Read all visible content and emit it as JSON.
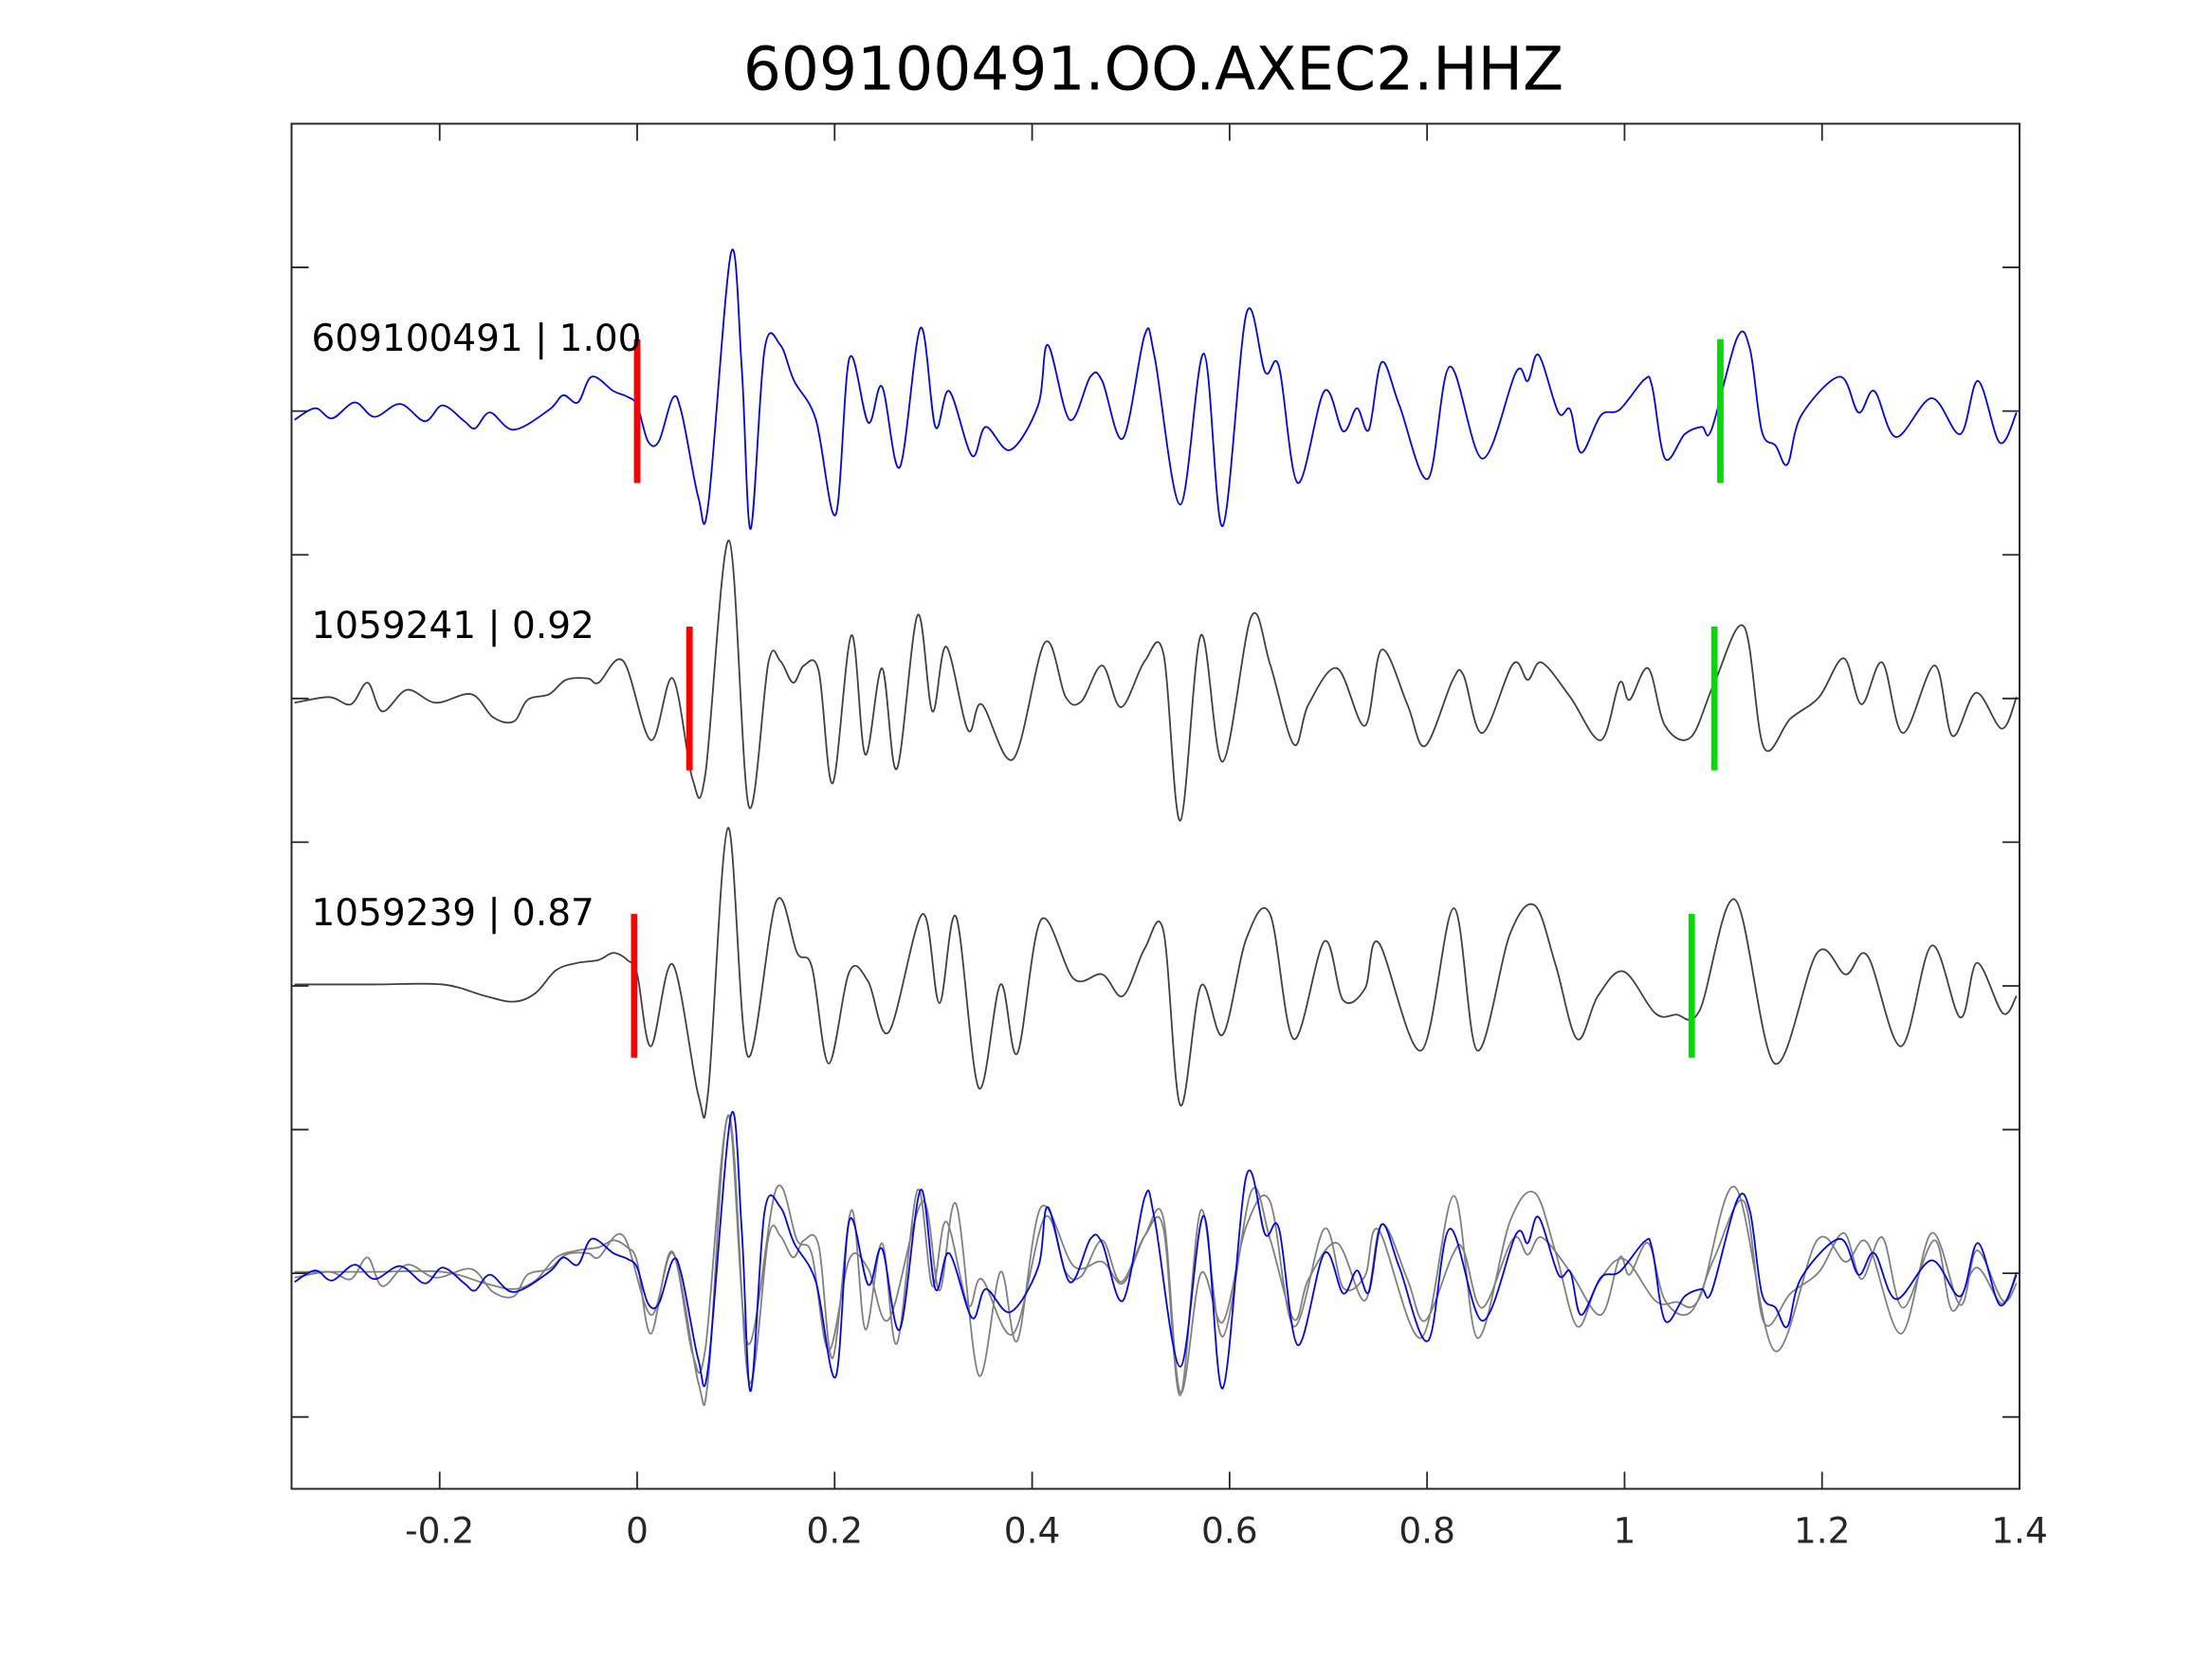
{
  "chart_data": {
    "type": "line",
    "title": "609100491.OO.AXEC2.HHZ",
    "xlabel": "",
    "ylabel": "",
    "xlim": [
      -0.35,
      1.4
    ],
    "ylim": [
      -0.5,
      9
    ],
    "xticks": [
      -0.2,
      0,
      0.2,
      0.4,
      0.6,
      0.8,
      1,
      1.2,
      1.4
    ],
    "xtick_labels": [
      "-0.2",
      "0",
      "0.2",
      "0.4",
      "0.6",
      "0.8",
      "1",
      "1.2",
      "1.4"
    ],
    "yticks": [
      0,
      1,
      2,
      3,
      4,
      5,
      6,
      7,
      8
    ],
    "grid": false,
    "colors": {
      "template": "#0000ff",
      "neighbor": "#404040",
      "overlay_neighbor": "#808080",
      "p_pick": "#ff0000",
      "s_pick": "#00dd00",
      "axis": "#262626"
    },
    "series": [
      {
        "name": "609100491",
        "cc": "1.00",
        "label": "609100491 | 1.00",
        "offset": 7,
        "color": "#0000ff",
        "p_pick": 0.0,
        "s_pick": 1.097,
        "points": [
          [
            -0.347,
            -0.06
          ],
          [
            -0.326,
            0.02
          ],
          [
            -0.309,
            -0.05
          ],
          [
            -0.286,
            0.06
          ],
          [
            -0.266,
            -0.04
          ],
          [
            -0.24,
            0.05
          ],
          [
            -0.215,
            -0.07
          ],
          [
            -0.197,
            0.04
          ],
          [
            -0.175,
            -0.07
          ],
          [
            -0.164,
            -0.12
          ],
          [
            -0.149,
            -0.01
          ],
          [
            -0.125,
            -0.13
          ],
          [
            -0.089,
            0.01
          ],
          [
            -0.075,
            0.11
          ],
          [
            -0.06,
            0.06
          ],
          [
            -0.046,
            0.24
          ],
          [
            -0.024,
            0.14
          ],
          [
            -0.01,
            0.1
          ],
          [
            0,
            0.04
          ],
          [
            0.011,
            -0.21
          ],
          [
            0.022,
            -0.21
          ],
          [
            0.036,
            0.09
          ],
          [
            0.045,
            -0.01
          ],
          [
            0.062,
            -0.6
          ],
          [
            0.072,
            -0.65
          ],
          [
            0.095,
            1.1
          ],
          [
            0.106,
            0.29
          ],
          [
            0.115,
            -0.82
          ],
          [
            0.129,
            0.43
          ],
          [
            0.145,
            0.46
          ],
          [
            0.159,
            0.21
          ],
          [
            0.181,
            -0.06
          ],
          [
            0.201,
            -0.72
          ],
          [
            0.215,
            0.37
          ],
          [
            0.234,
            -0.08
          ],
          [
            0.248,
            0.17
          ],
          [
            0.266,
            -0.39
          ],
          [
            0.287,
            0.58
          ],
          [
            0.302,
            -0.11
          ],
          [
            0.316,
            0.14
          ],
          [
            0.339,
            -0.31
          ],
          [
            0.353,
            -0.11
          ],
          [
            0.378,
            -0.27
          ],
          [
            0.406,
            0.04
          ],
          [
            0.416,
            0.46
          ],
          [
            0.438,
            -0.06
          ],
          [
            0.459,
            0.24
          ],
          [
            0.471,
            0.21
          ],
          [
            0.492,
            -0.19
          ],
          [
            0.514,
            0.53
          ],
          [
            0.524,
            0.38
          ],
          [
            0.55,
            -0.65
          ],
          [
            0.574,
            0.4
          ],
          [
            0.593,
            -0.8
          ],
          [
            0.617,
            0.68
          ],
          [
            0.636,
            0.27
          ],
          [
            0.65,
            0.31
          ],
          [
            0.669,
            -0.5
          ],
          [
            0.696,
            0.14
          ],
          [
            0.715,
            -0.14
          ],
          [
            0.729,
            0.02
          ],
          [
            0.741,
            -0.13
          ],
          [
            0.754,
            0.34
          ],
          [
            0.772,
            0.04
          ],
          [
            0.801,
            -0.47
          ],
          [
            0.823,
            0.31
          ],
          [
            0.856,
            -0.33
          ],
          [
            0.89,
            0.27
          ],
          [
            0.902,
            0.21
          ],
          [
            0.913,
            0.39
          ],
          [
            0.933,
            -0.01
          ],
          [
            0.945,
            0.01
          ],
          [
            0.956,
            -0.29
          ],
          [
            0.976,
            -0.03
          ],
          [
            0.995,
            0.01
          ],
          [
            1.02,
            0.22
          ],
          [
            1.028,
            0.17
          ],
          [
            1.041,
            -0.33
          ],
          [
            1.061,
            -0.16
          ],
          [
            1.078,
            -0.11
          ],
          [
            1.088,
            -0.13
          ],
          [
            1.114,
            0.51
          ],
          [
            1.127,
            0.43
          ],
          [
            1.139,
            -0.14
          ],
          [
            1.153,
            -0.24
          ],
          [
            1.165,
            -0.37
          ],
          [
            1.179,
            -0.03
          ],
          [
            1.218,
            0.24
          ],
          [
            1.237,
            -0.01
          ],
          [
            1.253,
            0.14
          ],
          [
            1.275,
            -0.18
          ],
          [
            1.311,
            0.09
          ],
          [
            1.34,
            -0.16
          ],
          [
            1.358,
            0.21
          ],
          [
            1.38,
            -0.22
          ],
          [
            1.397,
            -0.01
          ]
        ]
      },
      {
        "name": "1059241",
        "cc": "0.92",
        "label": "1059241 | 0.92",
        "offset": 5,
        "color": "#404040",
        "p_pick": 0.053,
        "s_pick": 1.091,
        "points": [
          [
            -0.347,
            -0.03
          ],
          [
            -0.312,
            0.01
          ],
          [
            -0.29,
            -0.04
          ],
          [
            -0.273,
            0.11
          ],
          [
            -0.258,
            -0.09
          ],
          [
            -0.233,
            0.06
          ],
          [
            -0.204,
            -0.03
          ],
          [
            -0.168,
            0.03
          ],
          [
            -0.146,
            -0.13
          ],
          [
            -0.125,
            -0.16
          ],
          [
            -0.111,
            -0.01
          ],
          [
            -0.089,
            0.03
          ],
          [
            -0.072,
            0.13
          ],
          [
            -0.05,
            0.14
          ],
          [
            -0.039,
            0.11
          ],
          [
            -0.014,
            0.26
          ],
          [
            0.014,
            -0.29
          ],
          [
            0.036,
            0.14
          ],
          [
            0.056,
            -0.56
          ],
          [
            0.069,
            -0.53
          ],
          [
            0.093,
            1.1
          ],
          [
            0.113,
            -0.75
          ],
          [
            0.133,
            0.25
          ],
          [
            0.145,
            0.26
          ],
          [
            0.158,
            0.11
          ],
          [
            0.169,
            0.23
          ],
          [
            0.184,
            0.19
          ],
          [
            0.198,
            -0.59
          ],
          [
            0.217,
            0.44
          ],
          [
            0.231,
            -0.39
          ],
          [
            0.248,
            0.21
          ],
          [
            0.263,
            -0.49
          ],
          [
            0.284,
            0.58
          ],
          [
            0.299,
            -0.09
          ],
          [
            0.313,
            0.36
          ],
          [
            0.335,
            -0.22
          ],
          [
            0.349,
            -0.04
          ],
          [
            0.381,
            -0.42
          ],
          [
            0.413,
            0.39
          ],
          [
            0.434,
            0.01
          ],
          [
            0.45,
            -0.02
          ],
          [
            0.471,
            0.23
          ],
          [
            0.49,
            -0.06
          ],
          [
            0.514,
            0.26
          ],
          [
            0.533,
            0.31
          ],
          [
            0.55,
            -0.85
          ],
          [
            0.571,
            0.44
          ],
          [
            0.593,
            -0.44
          ],
          [
            0.622,
            0.57
          ],
          [
            0.641,
            0.24
          ],
          [
            0.665,
            -0.32
          ],
          [
            0.68,
            -0.04
          ],
          [
            0.709,
            0.21
          ],
          [
            0.737,
            -0.19
          ],
          [
            0.754,
            0.34
          ],
          [
            0.78,
            -0.04
          ],
          [
            0.798,
            -0.33
          ],
          [
            0.826,
            0.13
          ],
          [
            0.837,
            0.16
          ],
          [
            0.856,
            -0.24
          ],
          [
            0.887,
            0.24
          ],
          [
            0.902,
            0.13
          ],
          [
            0.916,
            0.25
          ],
          [
            0.945,
            0.01
          ],
          [
            0.976,
            -0.29
          ],
          [
            0.995,
            0.11
          ],
          [
            1.005,
            -0.01
          ],
          [
            1.024,
            0.21
          ],
          [
            1.041,
            -0.19
          ],
          [
            1.067,
            -0.27
          ],
          [
            1.091,
            0.11
          ],
          [
            1.121,
            0.5
          ],
          [
            1.141,
            -0.34
          ],
          [
            1.168,
            -0.14
          ],
          [
            1.197,
            0.01
          ],
          [
            1.222,
            0.28
          ],
          [
            1.24,
            -0.04
          ],
          [
            1.261,
            0.25
          ],
          [
            1.282,
            -0.24
          ],
          [
            1.314,
            0.23
          ],
          [
            1.332,
            -0.26
          ],
          [
            1.356,
            0.04
          ],
          [
            1.382,
            -0.21
          ],
          [
            1.397,
            0.01
          ]
        ]
      },
      {
        "name": "1059239",
        "cc": "0.87",
        "label": "1059239 | 0.87",
        "offset": 3,
        "color": "#404040",
        "p_pick": -0.003,
        "s_pick": 1.068,
        "points": [
          [
            -0.347,
            0.01
          ],
          [
            -0.268,
            0.01
          ],
          [
            -0.197,
            0.01
          ],
          [
            -0.154,
            -0.07
          ],
          [
            -0.125,
            -0.11
          ],
          [
            -0.103,
            -0.05
          ],
          [
            -0.082,
            0.11
          ],
          [
            -0.06,
            0.16
          ],
          [
            -0.039,
            0.18
          ],
          [
            -0.024,
            0.23
          ],
          [
            -0.01,
            0.18
          ],
          [
            0,
            0.08
          ],
          [
            0.014,
            -0.42
          ],
          [
            0.036,
            0.15
          ],
          [
            0.062,
            -0.76
          ],
          [
            0.072,
            -0.73
          ],
          [
            0.092,
            1.1
          ],
          [
            0.112,
            -0.49
          ],
          [
            0.141,
            0.59
          ],
          [
            0.162,
            0.23
          ],
          [
            0.177,
            0.13
          ],
          [
            0.194,
            -0.54
          ],
          [
            0.215,
            0.1
          ],
          [
            0.234,
            0.03
          ],
          [
            0.255,
            -0.32
          ],
          [
            0.289,
            0.5
          ],
          [
            0.306,
            -0.12
          ],
          [
            0.323,
            0.48
          ],
          [
            0.346,
            -0.71
          ],
          [
            0.368,
            0.01
          ],
          [
            0.385,
            -0.47
          ],
          [
            0.409,
            0.46
          ],
          [
            0.442,
            0.05
          ],
          [
            0.471,
            0.08
          ],
          [
            0.492,
            -0.07
          ],
          [
            0.514,
            0.26
          ],
          [
            0.533,
            0.38
          ],
          [
            0.55,
            -0.83
          ],
          [
            0.571,
            0.0
          ],
          [
            0.593,
            -0.34
          ],
          [
            0.617,
            0.33
          ],
          [
            0.641,
            0.5
          ],
          [
            0.665,
            -0.37
          ],
          [
            0.696,
            0.31
          ],
          [
            0.715,
            -0.1
          ],
          [
            0.737,
            -0.02
          ],
          [
            0.751,
            0.3
          ],
          [
            0.794,
            -0.45
          ],
          [
            0.827,
            0.54
          ],
          [
            0.851,
            -0.45
          ],
          [
            0.884,
            0.36
          ],
          [
            0.909,
            0.56
          ],
          [
            0.93,
            0.15
          ],
          [
            0.952,
            -0.37
          ],
          [
            0.973,
            -0.07
          ],
          [
            0.999,
            0.1
          ],
          [
            1.031,
            -0.19
          ],
          [
            1.052,
            -0.2
          ],
          [
            1.076,
            -0.17
          ],
          [
            1.112,
            0.6
          ],
          [
            1.152,
            -0.54
          ],
          [
            1.195,
            0.23
          ],
          [
            1.224,
            0.08
          ],
          [
            1.246,
            0.21
          ],
          [
            1.28,
            -0.42
          ],
          [
            1.311,
            0.28
          ],
          [
            1.34,
            -0.22
          ],
          [
            1.357,
            0.16
          ],
          [
            1.383,
            -0.19
          ],
          [
            1.397,
            -0.07
          ]
        ]
      }
    ],
    "overlay": {
      "name": "stack",
      "offset": 1,
      "series_order": [
        2,
        1,
        0
      ]
    }
  }
}
